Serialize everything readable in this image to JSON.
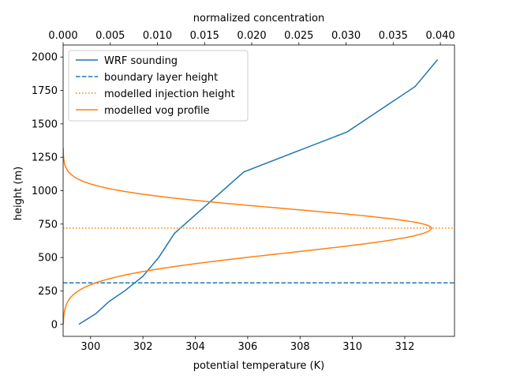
{
  "chart_data": {
    "type": "line",
    "xlabel_bottom": "potential temperature (K)",
    "xlabel_top": "normalized concentration",
    "ylabel": "height (m)",
    "xlim_bottom": [
      298.95,
      313.9
    ],
    "xlim_top": [
      0,
      0.0415
    ],
    "ylim": [
      -90,
      2090
    ],
    "xticks_bottom": [
      300,
      302,
      304,
      306,
      308,
      310,
      312
    ],
    "xticks_top": [
      0.0,
      0.005,
      0.01,
      0.015,
      0.02,
      0.025,
      0.03,
      0.035,
      0.04
    ],
    "xtick_labels_top": [
      "0.000",
      "0.005",
      "0.010",
      "0.015",
      "0.020",
      "0.025",
      "0.030",
      "0.035",
      "0.040"
    ],
    "yticks": [
      0,
      250,
      500,
      750,
      1000,
      1250,
      1500,
      1750,
      2000
    ],
    "legend_position": "upper-left",
    "colors": {
      "blue": "#1f77b4",
      "orange": "#ff7f0e"
    },
    "series": [
      {
        "name": "WRF sounding",
        "axis": "bottom",
        "style": "solid",
        "color": "#1f77b4",
        "x": [
          299.55,
          300.2,
          300.7,
          301.3,
          302.0,
          302.6,
          303.2,
          305.85,
          309.8,
          312.4,
          313.25
        ],
        "y": [
          0,
          80,
          170,
          250,
          360,
          500,
          680,
          1140,
          1440,
          1780,
          1980
        ]
      },
      {
        "name": "boundary layer height",
        "style": "dashed",
        "color": "#1f77b4",
        "y": 310
      },
      {
        "name": "modelled injection height",
        "style": "dotted",
        "color": "#ff7f0e",
        "y": 720
      },
      {
        "name": "modelled vog profile",
        "axis": "top",
        "style": "solid",
        "color": "#ff7f0e",
        "peak_conc": 0.03905,
        "peak_height": 720,
        "sigma_below": 186,
        "sigma_above": 145,
        "y_min": 0,
        "y_max": 1320
      }
    ]
  }
}
